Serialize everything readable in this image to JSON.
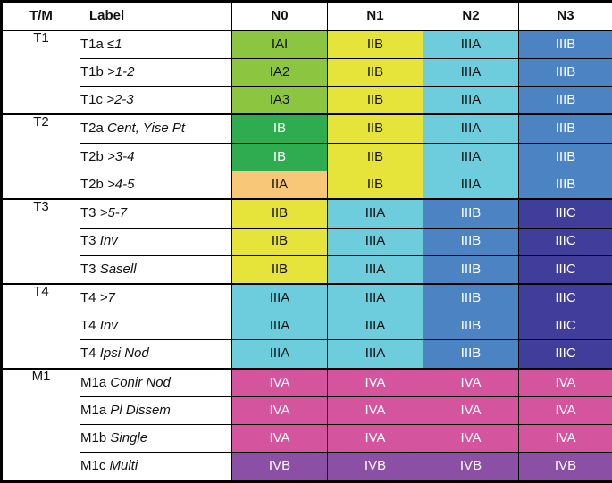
{
  "table": {
    "headers": [
      "T/M",
      "Label",
      "N0",
      "N1",
      "N2",
      "N3"
    ],
    "groups": [
      {
        "tm": "T1",
        "rows": [
          {
            "label_prefix": "T1a",
            "label_desc": "≤1",
            "stages": [
              "IAI",
              "IIB",
              "IIIA",
              "IIIB"
            ]
          },
          {
            "label_prefix": "T1b",
            "label_desc": ">1-2",
            "stages": [
              "IA2",
              "IIB",
              "IIIA",
              "IIIB"
            ]
          },
          {
            "label_prefix": "T1c",
            "label_desc": ">2-3",
            "stages": [
              "IA3",
              "IIB",
              "IIIA",
              "IIIB"
            ]
          }
        ]
      },
      {
        "tm": "T2",
        "rows": [
          {
            "label_prefix": "T2a",
            "label_desc": "Cent, Yise Pt",
            "stages": [
              "IB",
              "IIB",
              "IIIA",
              "IIIB"
            ]
          },
          {
            "label_prefix": "T2b",
            "label_desc": ">3-4",
            "stages": [
              "IB",
              "IIB",
              "IIIA",
              "IIIB"
            ]
          },
          {
            "label_prefix": "T2b",
            "label_desc": ">4-5",
            "stages": [
              "IIA",
              "IIB",
              "IIIA",
              "IIIB"
            ]
          }
        ]
      },
      {
        "tm": "T3",
        "rows": [
          {
            "label_prefix": "T3",
            "label_desc": ">5-7",
            "stages": [
              "IIB",
              "IIIA",
              "IIIB",
              "IIIC"
            ]
          },
          {
            "label_prefix": "T3",
            "label_desc": "Inv",
            "stages": [
              "IIB",
              "IIIA",
              "IIIB",
              "IIIC"
            ]
          },
          {
            "label_prefix": "T3",
            "label_desc": "Sasell",
            "stages": [
              "IIB",
              "IIIA",
              "IIIB",
              "IIIC"
            ]
          }
        ]
      },
      {
        "tm": "T4",
        "rows": [
          {
            "label_prefix": "T4",
            "label_desc": ">7",
            "stages": [
              "IIIA",
              "IIIA",
              "IIIB",
              "IIIC"
            ]
          },
          {
            "label_prefix": "T4",
            "label_desc": "Inv",
            "stages": [
              "IIIA",
              "IIIA",
              "IIIB",
              "IIIC"
            ]
          },
          {
            "label_prefix": "T4",
            "label_desc": "Ipsi Nod",
            "stages": [
              "IIIA",
              "IIIA",
              "IIIB",
              "IIIC"
            ]
          }
        ]
      },
      {
        "tm": "M1",
        "rows": [
          {
            "label_prefix": "M1a",
            "label_desc": "Conir Nod",
            "stages": [
              "IVA",
              "IVA",
              "IVA",
              "IVA"
            ]
          },
          {
            "label_prefix": "M1a",
            "label_desc": "Pl Dissem",
            "stages": [
              "IVA",
              "IVA",
              "IVA",
              "IVA"
            ]
          },
          {
            "label_prefix": "M1b",
            "label_desc": "Single",
            "stages": [
              "IVA",
              "IVA",
              "IVA",
              "IVA"
            ]
          },
          {
            "label_prefix": "M1c",
            "label_desc": "Multi",
            "stages": [
              "IVB",
              "IVB",
              "IVB",
              "IVB"
            ]
          }
        ]
      }
    ],
    "stage_colors": {
      "IAI": {
        "bg": "#8CC640",
        "fg": "#111111"
      },
      "IA2": {
        "bg": "#8CC640",
        "fg": "#111111"
      },
      "IA3": {
        "bg": "#8CC640",
        "fg": "#111111"
      },
      "IB": {
        "bg": "#2FAC4F",
        "fg": "#ffffff"
      },
      "IIA": {
        "bg": "#F9C778",
        "fg": "#111111"
      },
      "IIB": {
        "bg": "#E6E33B",
        "fg": "#111111"
      },
      "IIIA": {
        "bg": "#6DCDDD",
        "fg": "#111111"
      },
      "IIIB": {
        "bg": "#4C83C3",
        "fg": "#ffffff"
      },
      "IIIC": {
        "bg": "#413D9B",
        "fg": "#ffffff"
      },
      "IVA": {
        "bg": "#D5549E",
        "fg": "#ffffff"
      },
      "IVB": {
        "bg": "#8C4FA6",
        "fg": "#ffffff"
      }
    }
  }
}
